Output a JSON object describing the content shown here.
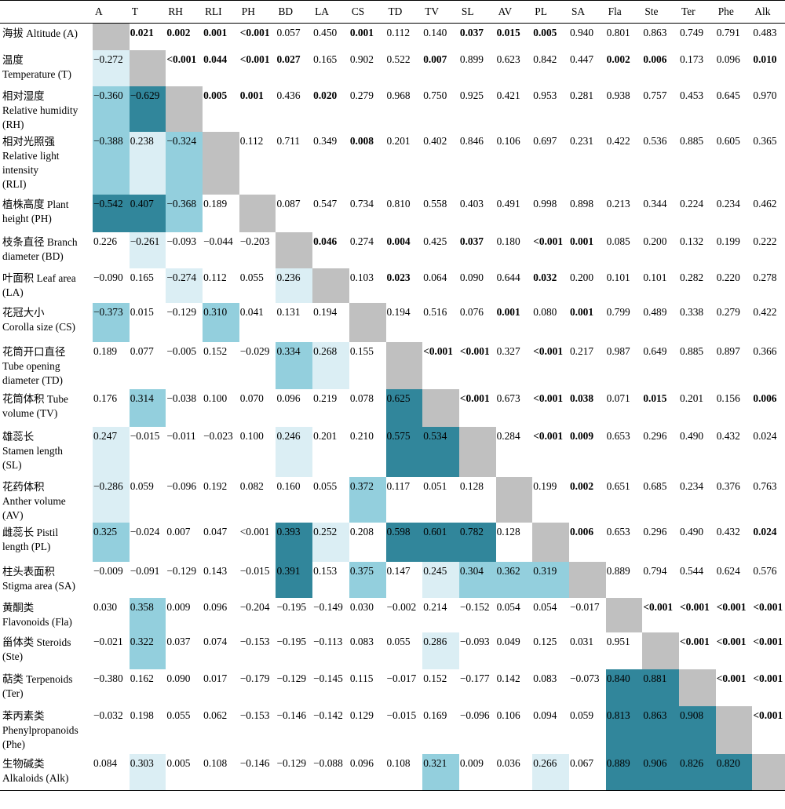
{
  "chart_data": {
    "type": "table",
    "columns": [
      "A",
      "T",
      "RH",
      "RLI",
      "PH",
      "BD",
      "LA",
      "CS",
      "TD",
      "TV",
      "SL",
      "AV",
      "PL",
      "SA",
      "Fla",
      "Ste",
      "Ter",
      "Phe",
      "Alk"
    ],
    "rows": [
      {
        "label": "海拔  Altitude (A)",
        "cells": [
          "",
          "0.021",
          "0.002",
          "0.001",
          "<0.001",
          "0.057",
          "0.450",
          "0.001",
          "0.112",
          "0.140",
          "0.037",
          "0.015",
          "0.005",
          "0.940",
          "0.801",
          "0.863",
          "0.749",
          "0.791",
          "0.483"
        ]
      },
      {
        "label": "温度\nTemperature (T)",
        "cells": [
          "−0.272",
          "",
          "<0.001",
          "0.044",
          "<0.001",
          "0.027",
          "0.165",
          "0.902",
          "0.522",
          "0.007",
          "0.899",
          "0.623",
          "0.842",
          "0.447",
          "0.002",
          "0.006",
          "0.173",
          "0.096",
          "0.010"
        ]
      },
      {
        "label": "相对湿度\nRelative humidity\n(RH)",
        "cells": [
          "−0.360",
          "−0.629",
          "",
          "0.005",
          "0.001",
          "0.436",
          "0.020",
          "0.279",
          "0.968",
          "0.750",
          "0.925",
          "0.421",
          "0.953",
          "0.281",
          "0.938",
          "0.757",
          "0.453",
          "0.645",
          "0.970"
        ]
      },
      {
        "label": "相对光照强\nRelative light\nintensity\n(RLI)",
        "cells": [
          "−0.388",
          "0.238",
          "−0.324",
          "",
          "0.112",
          "0.711",
          "0.349",
          "0.008",
          "0.201",
          "0.402",
          "0.846",
          "0.106",
          "0.697",
          "0.231",
          "0.422",
          "0.536",
          "0.885",
          "0.605",
          "0.365"
        ]
      },
      {
        "label": "植株高度  Plant\nheight (PH)",
        "cells": [
          "−0.542",
          "0.407",
          "−0.368",
          "0.189",
          "",
          "0.087",
          "0.547",
          "0.734",
          "0.810",
          "0.558",
          "0.403",
          "0.491",
          "0.998",
          "0.898",
          "0.213",
          "0.344",
          "0.224",
          "0.234",
          "0.462"
        ]
      },
      {
        "label": "枝条直径  Branch\ndiameter (BD)",
        "cells": [
          "0.226",
          "−0.261",
          "−0.093",
          "−0.044",
          "−0.203",
          "",
          "0.046",
          "0.274",
          "0.004",
          "0.425",
          "0.037",
          "0.180",
          "<0.001",
          "0.001",
          "0.085",
          "0.200",
          "0.132",
          "0.199",
          "0.222"
        ]
      },
      {
        "label": "叶面积  Leaf area\n(LA)",
        "cells": [
          "−0.090",
          "0.165",
          "−0.274",
          "0.112",
          "0.055",
          "0.236",
          "",
          "0.103",
          "0.023",
          "0.064",
          "0.090",
          "0.644",
          "0.032",
          "0.200",
          "0.101",
          "0.101",
          "0.282",
          "0.220",
          "0.278"
        ]
      },
      {
        "label": "花冠大小\nCorolla size (CS)",
        "cells": [
          "−0.373",
          "0.015",
          "−0.129",
          "0.310",
          "0.041",
          "0.131",
          "0.194",
          "",
          "0.194",
          "0.516",
          "0.076",
          "0.001",
          "0.080",
          "0.001",
          "0.799",
          "0.489",
          "0.338",
          "0.279",
          "0.422"
        ]
      },
      {
        "label": "花筒开口直径\nTube opening\ndiameter (TD)",
        "cells": [
          "0.189",
          "0.077",
          "−0.005",
          "0.152",
          "−0.029",
          "0.334",
          "0.268",
          "0.155",
          "",
          "<0.001",
          "<0.001",
          "0.327",
          "<0.001",
          "0.217",
          "0.987",
          "0.649",
          "0.885",
          "0.897",
          "0.366"
        ]
      },
      {
        "label": "花筒体积  Tube\nvolume (TV)",
        "cells": [
          "0.176",
          "0.314",
          "−0.038",
          "0.100",
          "0.070",
          "0.096",
          "0.219",
          "0.078",
          "0.625",
          "",
          "<0.001",
          "0.673",
          "<0.001",
          "0.038",
          "0.071",
          "0.015",
          "0.201",
          "0.156",
          "0.006"
        ]
      },
      {
        "label": "雄蕊长\nStamen length\n(SL)",
        "cells": [
          "0.247",
          "−0.015",
          "−0.011",
          "−0.023",
          "0.100",
          "0.246",
          "0.201",
          "0.210",
          "0.575",
          "0.534",
          "",
          "0.284",
          "<0.001",
          "0.009",
          "0.653",
          "0.296",
          "0.490",
          "0.432",
          "0.024"
        ]
      },
      {
        "label": "花药体积\nAnther volume\n(AV)",
        "cells": [
          "−0.286",
          "0.059",
          "−0.096",
          "0.192",
          "0.082",
          "0.160",
          "0.055",
          "0.372",
          "0.117",
          "0.051",
          "0.128",
          "",
          "0.199",
          "0.002",
          "0.651",
          "0.685",
          "0.234",
          "0.376",
          "0.763"
        ]
      },
      {
        "label": "雌蕊长  Pistil\nlength (PL)",
        "cells": [
          "0.325",
          "−0.024",
          "0.007",
          "0.047",
          "<0.001",
          "0.393",
          "0.252",
          "0.208",
          "0.598",
          "0.601",
          "0.782",
          "0.128",
          "",
          "0.006",
          "0.653",
          "0.296",
          "0.490",
          "0.432",
          "0.024"
        ]
      },
      {
        "label": "柱头表面积\nStigma area (SA)",
        "cells": [
          "−0.009",
          "−0.091",
          "−0.129",
          "0.143",
          "−0.015",
          "0.391",
          "0.153",
          "0.375",
          "0.147",
          "0.245",
          "0.304",
          "0.362",
          "0.319",
          "",
          "0.889",
          "0.794",
          "0.544",
          "0.624",
          "0.576"
        ]
      },
      {
        "label": "黄酮类\nFlavonoids (Fla)",
        "cells": [
          "0.030",
          "0.358",
          "0.009",
          "0.096",
          "−0.204",
          "−0.195",
          "−0.149",
          "0.030",
          "−0.002",
          "0.214",
          "−0.152",
          "0.054",
          "0.054",
          "−0.017",
          "",
          "<0.001",
          "<0.001",
          "<0.001",
          "<0.001"
        ]
      },
      {
        "label": "甾体类  Steroids\n(Ste)",
        "cells": [
          "−0.021",
          "0.322",
          "0.037",
          "0.074",
          "−0.153",
          "−0.195",
          "−0.113",
          "0.083",
          "0.055",
          "0.286",
          "−0.093",
          "0.049",
          "0.125",
          "0.031",
          "0.951",
          "",
          "<0.001",
          "<0.001",
          "<0.001"
        ]
      },
      {
        "label": "萜类  Terpenoids\n(Ter)",
        "cells": [
          "−0.380",
          "0.162",
          "0.090",
          "0.017",
          "−0.179",
          "−0.129",
          "−0.145",
          "0.115",
          "−0.017",
          "0.152",
          "−0.177",
          "0.142",
          "0.083",
          "−0.073",
          "0.840",
          "0.881",
          "",
          "<0.001",
          "<0.001"
        ]
      },
      {
        "label": "苯丙素类\nPhenylpropanoids\n(Phe)",
        "cells": [
          "−0.032",
          "0.198",
          "0.055",
          "0.062",
          "−0.153",
          "−0.146",
          "−0.142",
          "0.129",
          "−0.015",
          "0.169",
          "−0.096",
          "0.106",
          "0.094",
          "0.059",
          "0.813",
          "0.863",
          "0.908",
          "",
          "<0.001"
        ]
      },
      {
        "label": "生物碱类\nAlkaloids (Alk)",
        "cells": [
          "0.084",
          "0.303",
          "0.005",
          "0.108",
          "−0.146",
          "−0.129",
          "−0.088",
          "0.096",
          "0.108",
          "0.321",
          "0.009",
          "0.036",
          "0.266",
          "0.067",
          "0.889",
          "0.906",
          "0.826",
          "0.820",
          ""
        ]
      }
    ],
    "bold_cells": [
      [
        0,
        1
      ],
      [
        0,
        2
      ],
      [
        0,
        3
      ],
      [
        0,
        4
      ],
      [
        0,
        7
      ],
      [
        0,
        10
      ],
      [
        0,
        11
      ],
      [
        0,
        12
      ],
      [
        1,
        2
      ],
      [
        1,
        3
      ],
      [
        1,
        4
      ],
      [
        1,
        5
      ],
      [
        1,
        9
      ],
      [
        1,
        14
      ],
      [
        1,
        15
      ],
      [
        1,
        18
      ],
      [
        2,
        3
      ],
      [
        2,
        4
      ],
      [
        2,
        6
      ],
      [
        3,
        7
      ],
      [
        5,
        6
      ],
      [
        5,
        8
      ],
      [
        5,
        10
      ],
      [
        5,
        12
      ],
      [
        5,
        13
      ],
      [
        6,
        8
      ],
      [
        6,
        12
      ],
      [
        7,
        11
      ],
      [
        7,
        13
      ],
      [
        8,
        9
      ],
      [
        8,
        10
      ],
      [
        8,
        12
      ],
      [
        9,
        10
      ],
      [
        9,
        12
      ],
      [
        9,
        13
      ],
      [
        9,
        15
      ],
      [
        9,
        18
      ],
      [
        10,
        12
      ],
      [
        10,
        13
      ],
      [
        11,
        13
      ],
      [
        12,
        13
      ],
      [
        12,
        18
      ],
      [
        14,
        15
      ],
      [
        14,
        16
      ],
      [
        14,
        17
      ],
      [
        14,
        18
      ],
      [
        15,
        16
      ],
      [
        15,
        17
      ],
      [
        15,
        18
      ],
      [
        16,
        17
      ],
      [
        16,
        18
      ],
      [
        17,
        18
      ]
    ],
    "shade_levels": {
      "1": [
        [
          1,
          0
        ],
        [
          1,
          1
        ],
        [
          1,
          3
        ],
        [
          1,
          1
        ],
        [
          2,
          0
        ],
        [
          2,
          1
        ],
        [
          2,
          2
        ],
        [
          3,
          0
        ],
        [
          3,
          1
        ],
        [
          3,
          2
        ],
        [
          4,
          0
        ],
        [
          4,
          1
        ],
        [
          4,
          2
        ],
        [
          5,
          1
        ],
        [
          6,
          2
        ],
        [
          6,
          5
        ],
        [
          7,
          0
        ],
        [
          7,
          3
        ],
        [
          8,
          5
        ],
        [
          8,
          6
        ],
        [
          9,
          1
        ],
        [
          9,
          8
        ],
        [
          10,
          0
        ],
        [
          10,
          5
        ],
        [
          10,
          8
        ],
        [
          10,
          9
        ],
        [
          11,
          0
        ],
        [
          11,
          7
        ],
        [
          12,
          0
        ],
        [
          12,
          5
        ],
        [
          12,
          6
        ],
        [
          12,
          8
        ],
        [
          12,
          9
        ],
        [
          12,
          10
        ],
        [
          13,
          5
        ],
        [
          13,
          7
        ],
        [
          13,
          9
        ],
        [
          13,
          10
        ],
        [
          13,
          11
        ],
        [
          13,
          12
        ],
        [
          14,
          1
        ],
        [
          15,
          1
        ],
        [
          15,
          9
        ],
        [
          16,
          14
        ],
        [
          16,
          15
        ],
        [
          17,
          14
        ],
        [
          17,
          15
        ],
        [
          17,
          16
        ],
        [
          18,
          1
        ],
        [
          18,
          9
        ],
        [
          18,
          12
        ],
        [
          18,
          14
        ],
        [
          18,
          15
        ],
        [
          18,
          16
        ],
        [
          18,
          17
        ]
      ]
    },
    "shade_colors": {
      "light": "#dbeef4",
      "medium": "#93cfdd",
      "dark": "#31869b",
      "diagonal": "#c0c0c0"
    }
  }
}
